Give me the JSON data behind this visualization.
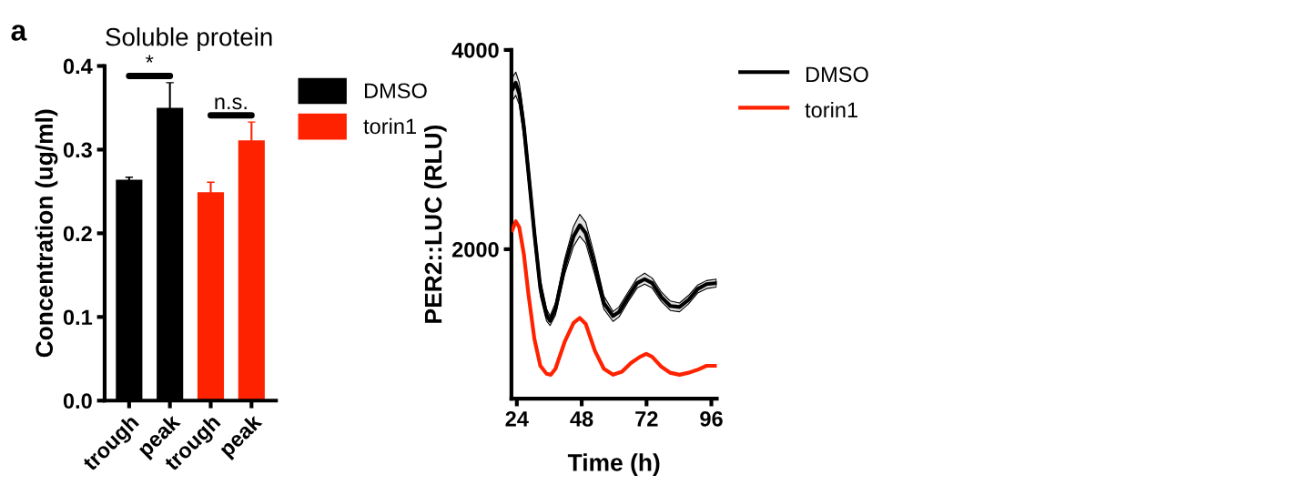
{
  "chart_data": [
    {
      "type": "bar",
      "title": "Soluble protein",
      "ylabel": "Concentration (ug/ml)",
      "categories": [
        "trough",
        "peak",
        "trough",
        "peak"
      ],
      "series": [
        {
          "name": "DMSO",
          "color": "#000000",
          "values": [
            0.264,
            0.35,
            null,
            null
          ],
          "errors": [
            0.003,
            0.03,
            null,
            null
          ]
        },
        {
          "name": "torin1",
          "color": "#ff2200",
          "values": [
            null,
            null,
            0.249,
            0.311
          ],
          "errors": [
            null,
            null,
            0.012,
            0.022
          ]
        }
      ],
      "ylim": [
        0,
        0.4
      ],
      "yticks": [
        {
          "value": 0,
          "label": "0.0"
        },
        0.1,
        0.2,
        0.3,
        0.4
      ],
      "legend": "top right",
      "grid": false,
      "annotations": [
        "a",
        "*",
        "n.s."
      ]
    },
    {
      "type": "line",
      "xlabel": "Time (h)",
      "ylabel": "PER2::LUC (RLU)",
      "xlim": [
        22,
        98
      ],
      "xticks": [
        24,
        48,
        72,
        96
      ],
      "ylim": [
        500,
        4000
      ],
      "yticks": [
        2000,
        4000
      ],
      "legend": "top right",
      "grid": false,
      "marker": "none",
      "line_style": "solid",
      "series": [
        {
          "name": "DMSO",
          "color": "#000000",
          "x": [
            22.3,
            23.6,
            24.9,
            26.6,
            28.3,
            30.5,
            32.7,
            35.0,
            36.3,
            38.3,
            41.7,
            45.0,
            47.3,
            49.5,
            52.9,
            56.2,
            59.6,
            61.8,
            65.2,
            68.5,
            71.3,
            74.1,
            77.5,
            80.8,
            84.2,
            87.5,
            90.9,
            94.2,
            97.8
          ],
          "values": [
            3600,
            3670,
            3560,
            3230,
            2770,
            2160,
            1610,
            1340,
            1280,
            1400,
            1830,
            2130,
            2240,
            2160,
            1830,
            1460,
            1330,
            1370,
            1520,
            1660,
            1700,
            1660,
            1520,
            1430,
            1420,
            1490,
            1600,
            1650,
            1660
          ],
          "upper": [
            3720,
            3778,
            3670,
            3330,
            2870,
            2260,
            1700,
            1400,
            1330,
            1460,
            1900,
            2230,
            2350,
            2270,
            1920,
            1530,
            1375,
            1420,
            1570,
            1710,
            1760,
            1710,
            1570,
            1480,
            1460,
            1535,
            1640,
            1685,
            1700
          ],
          "lower": [
            3490,
            3544,
            3450,
            3120,
            2670,
            2060,
            1530,
            1280,
            1234,
            1340,
            1750,
            2030,
            2131,
            2060,
            1740,
            1400,
            1275,
            1320,
            1475,
            1610,
            1650,
            1610,
            1475,
            1385,
            1372,
            1450,
            1560,
            1605,
            1620
          ]
        },
        {
          "name": "torin1",
          "color": "#ff2200",
          "x": [
            22.3,
            23.6,
            24.9,
            26.6,
            28.3,
            30.5,
            32.7,
            35.0,
            36.6,
            38.3,
            41.7,
            45.0,
            47.3,
            49.5,
            52.9,
            56.2,
            59.6,
            62.9,
            66.3,
            69.6,
            71.9,
            74.1,
            77.5,
            80.8,
            84.2,
            87.5,
            90.9,
            94.2,
            97.8
          ],
          "values": [
            2190,
            2280,
            2220,
            1950,
            1550,
            1100,
            830,
            750,
            740,
            800,
            1070,
            1260,
            1310,
            1250,
            980,
            800,
            740,
            770,
            860,
            920,
            950,
            920,
            820,
            760,
            740,
            760,
            790,
            830,
            830
          ]
        }
      ]
    }
  ]
}
